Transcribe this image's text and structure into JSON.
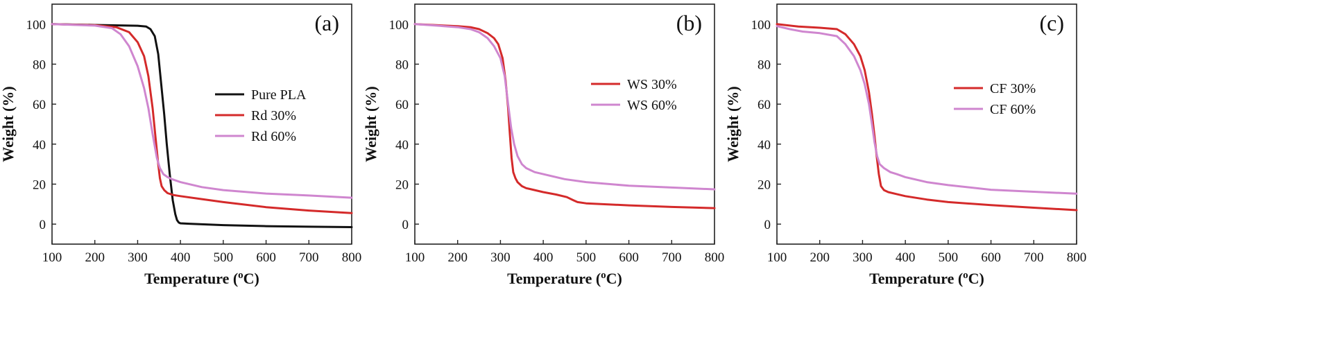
{
  "chart_data": [
    {
      "type": "line",
      "panel_label": "(a)",
      "xlabel": "Temperature (",
      "xlabel_sup": "o",
      "xlabel_unit": "C)",
      "ylabel": "Weight (%)",
      "xlim": [
        100,
        800
      ],
      "ylim": [
        -10,
        110
      ],
      "xticks": [
        100,
        200,
        300,
        400,
        500,
        600,
        700,
        800
      ],
      "yticks": [
        0,
        20,
        40,
        60,
        80,
        100
      ],
      "legend_position": "center-right",
      "series": [
        {
          "name": "Pure PLA",
          "color": "#111111",
          "x": [
            100,
            200,
            300,
            320,
            330,
            340,
            348,
            355,
            362,
            368,
            375,
            382,
            388,
            392,
            396,
            400,
            420,
            500,
            600,
            700,
            800
          ],
          "y": [
            100,
            99.6,
            99.2,
            98.8,
            97.5,
            94,
            85,
            70,
            55,
            40,
            25,
            12,
            5,
            2,
            0.8,
            0.4,
            0.2,
            -0.5,
            -1.0,
            -1.3,
            -1.5
          ]
        },
        {
          "name": "Rd 30%",
          "color": "#d42a2a",
          "x": [
            100,
            200,
            250,
            280,
            300,
            315,
            325,
            335,
            342,
            348,
            352,
            356,
            362,
            370,
            385,
            400,
            450,
            500,
            600,
            700,
            800
          ],
          "y": [
            100,
            99.5,
            98.5,
            96,
            91,
            84,
            74,
            58,
            43,
            30,
            23,
            19,
            17,
            15.5,
            14.5,
            14,
            12.5,
            11,
            8.5,
            6.8,
            5.5
          ]
        },
        {
          "name": "Rd 60%",
          "color": "#cf86cf",
          "x": [
            100,
            200,
            240,
            260,
            280,
            300,
            315,
            325,
            335,
            345,
            352,
            360,
            370,
            380,
            400,
            450,
            500,
            600,
            700,
            800
          ],
          "y": [
            100,
            99.3,
            98,
            95,
            89,
            79,
            68,
            58,
            45,
            33,
            28,
            25,
            23.5,
            22.5,
            21,
            18.5,
            17,
            15.3,
            14.3,
            13.2
          ]
        }
      ]
    },
    {
      "type": "line",
      "panel_label": "(b)",
      "xlabel": "Temperature (",
      "xlabel_sup": "o",
      "xlabel_unit": "C)",
      "ylabel": "Weight (%)",
      "xlim": [
        100,
        800
      ],
      "ylim": [
        -10,
        110
      ],
      "xticks": [
        100,
        200,
        300,
        400,
        500,
        600,
        700,
        800
      ],
      "yticks": [
        0,
        20,
        40,
        60,
        80,
        100
      ],
      "legend_position": "center-right",
      "series": [
        {
          "name": "WS 30%",
          "color": "#d42a2a",
          "x": [
            100,
            150,
            200,
            230,
            250,
            270,
            285,
            295,
            305,
            312,
            318,
            322,
            326,
            330,
            335,
            340,
            350,
            360,
            380,
            400,
            430,
            455,
            470,
            480,
            500,
            600,
            700,
            800
          ],
          "y": [
            100,
            99.5,
            99,
            98.5,
            97.5,
            95.5,
            93,
            90,
            83,
            72,
            58,
            45,
            33,
            26,
            23,
            21,
            19,
            18,
            17,
            16,
            14.8,
            13.5,
            12,
            11,
            10.4,
            9.4,
            8.6,
            8.0
          ]
        },
        {
          "name": "WS 60%",
          "color": "#cf86cf",
          "x": [
            100,
            150,
            200,
            230,
            250,
            270,
            285,
            300,
            310,
            318,
            325,
            332,
            340,
            350,
            360,
            380,
            400,
            450,
            500,
            600,
            700,
            800
          ],
          "y": [
            100,
            99.3,
            98.5,
            97.5,
            96,
            93,
            89,
            83,
            74,
            60,
            48,
            40,
            34,
            30,
            28,
            26,
            25,
            22.5,
            21,
            19.2,
            18.3,
            17.4
          ]
        }
      ]
    },
    {
      "type": "line",
      "panel_label": "(c)",
      "xlabel": "Temperature (",
      "xlabel_sup": "o",
      "xlabel_unit": "C)",
      "ylabel": "Weight (%)",
      "xlim": [
        100,
        800
      ],
      "ylim": [
        -10,
        110
      ],
      "xticks": [
        100,
        200,
        300,
        400,
        500,
        600,
        700,
        800
      ],
      "yticks": [
        0,
        20,
        40,
        60,
        80,
        100
      ],
      "legend_position": "center-right",
      "series": [
        {
          "name": "CF 30%",
          "color": "#d42a2a",
          "x": [
            100,
            150,
            200,
            240,
            260,
            280,
            295,
            305,
            315,
            322,
            328,
            333,
            338,
            343,
            350,
            360,
            380,
            400,
            450,
            500,
            600,
            700,
            800
          ],
          "y": [
            100,
            98.8,
            98.2,
            97.5,
            95,
            90,
            84,
            77,
            66,
            55,
            44,
            34,
            25,
            19,
            17,
            16,
            15,
            14,
            12.3,
            11,
            9.5,
            8.2,
            7.0
          ]
        },
        {
          "name": "CF 60%",
          "color": "#cf86cf",
          "x": [
            100,
            130,
            160,
            200,
            240,
            260,
            280,
            295,
            305,
            315,
            322,
            328,
            334,
            340,
            350,
            365,
            380,
            400,
            450,
            500,
            600,
            700,
            800
          ],
          "y": [
            99,
            97.5,
            96.3,
            95.5,
            94,
            90,
            84,
            77,
            70,
            60,
            50,
            41,
            34,
            30,
            28,
            26,
            25,
            23.5,
            21,
            19.5,
            17.2,
            16.2,
            15.2
          ]
        }
      ]
    }
  ]
}
